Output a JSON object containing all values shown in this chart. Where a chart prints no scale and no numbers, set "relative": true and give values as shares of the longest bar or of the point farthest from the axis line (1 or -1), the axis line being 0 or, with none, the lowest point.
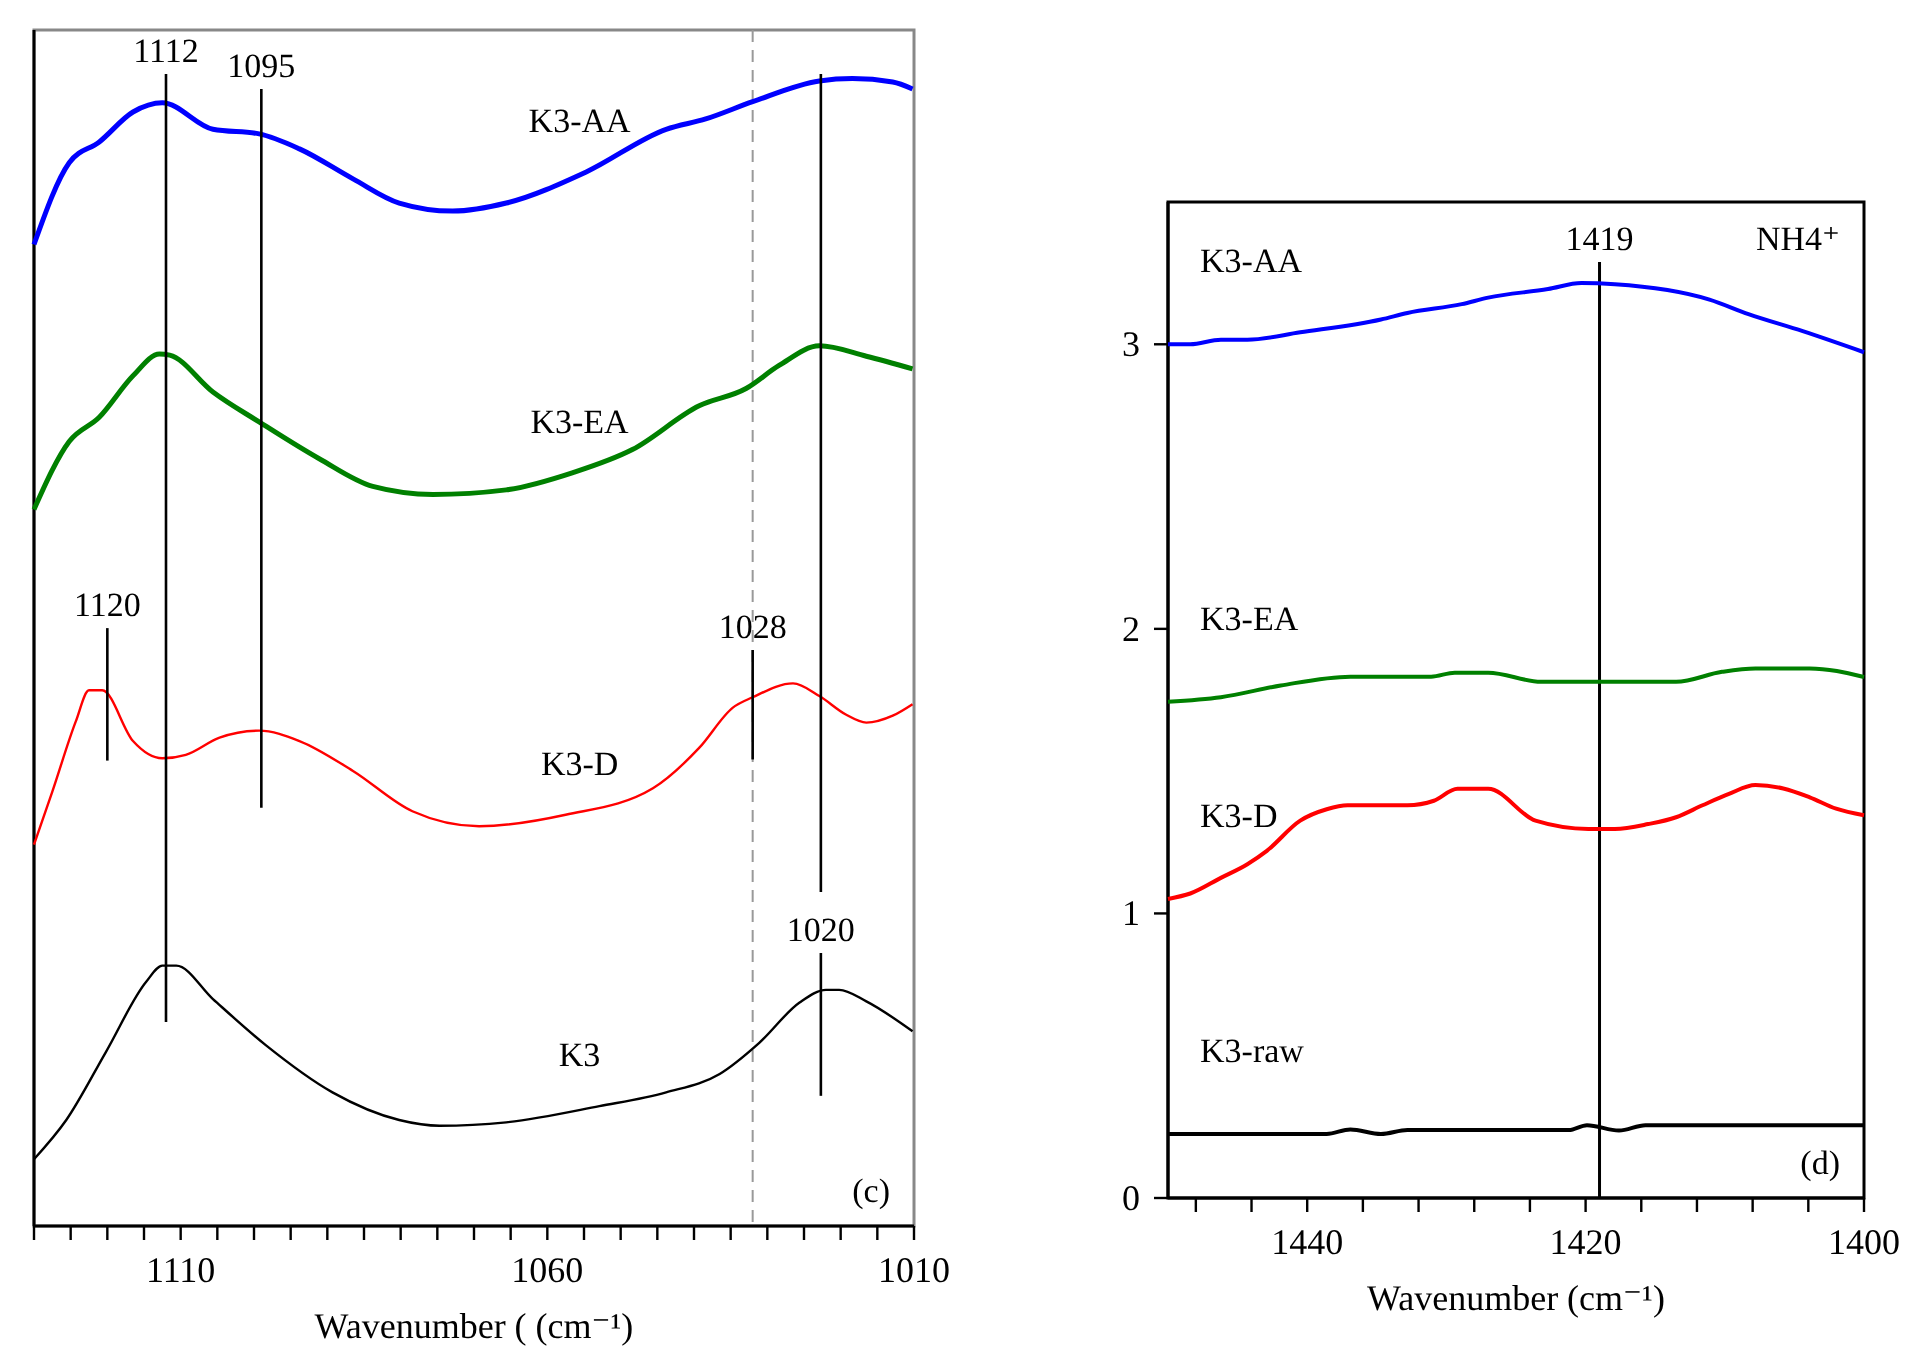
{
  "chart_data": [
    {
      "type": "line",
      "xlabel": "Wavenumber ( (cm⁻¹)",
      "relative": true,
      "xlim": [
        1130,
        1010
      ],
      "xticks": [
        {
          "value": 1130,
          "label": null
        },
        {
          "value": 1125,
          "label": null
        },
        {
          "value": 1120,
          "label": null
        },
        {
          "value": 1115,
          "label": null
        },
        1110,
        {
          "value": 1105,
          "label": null
        },
        {
          "value": 1100,
          "label": null
        },
        {
          "value": 1095,
          "label": null
        },
        {
          "value": 1090,
          "label": null
        },
        {
          "value": 1085,
          "label": null
        },
        {
          "value": 1080,
          "label": null
        },
        {
          "value": 1075,
          "label": null
        },
        {
          "value": 1070,
          "label": null
        },
        {
          "value": 1065,
          "label": null
        },
        1060,
        {
          "value": 1055,
          "label": null
        },
        {
          "value": 1050,
          "label": null
        },
        {
          "value": 1045,
          "label": null
        },
        {
          "value": 1040,
          "label": null
        },
        {
          "value": 1035,
          "label": null
        },
        {
          "value": 1030,
          "label": null
        },
        {
          "value": 1025,
          "label": null
        },
        {
          "value": 1020,
          "label": null
        },
        {
          "value": 1015,
          "label": null
        },
        1010
      ],
      "series": [
        {
          "name": "K3-AA",
          "color": "#0000ff",
          "x": [
            1130,
            1125.2,
            1121.1,
            1116.5,
            1112.5,
            1105.6,
            1099.3,
            1093.8,
            1086.5,
            1080.2,
            1072.9,
            1065.6,
            1054.7,
            1043.8,
            1038.4,
            1032,
            1022.9,
            1018.4,
            1012.9,
            1010.2
          ],
          "values": [
            0.852,
            0.923,
            0.941,
            0.967,
            0.975,
            0.952,
            0.948,
            0.935,
            0.909,
            0.888,
            0.881,
            0.888,
            0.915,
            0.952,
            0.961,
            0.976,
            0.994,
            0.996,
            0.993,
            0.987
          ]
        },
        {
          "name": "K3-EA",
          "color": "#008000",
          "x": [
            1130,
            1125.2,
            1121.1,
            1116.5,
            1112.9,
            1111.5,
            1105.6,
            1099.3,
            1091.1,
            1083.8,
            1075.6,
            1065.6,
            1056.5,
            1048.4,
            1039.3,
            1032.9,
            1028.4,
            1022.9,
            1016.5,
            1010.2
          ],
          "values": [
            0.622,
            0.681,
            0.702,
            0.738,
            0.757,
            0.756,
            0.724,
            0.698,
            0.666,
            0.642,
            0.635,
            0.639,
            0.654,
            0.674,
            0.712,
            0.727,
            0.747,
            0.764,
            0.755,
            0.744
          ]
        },
        {
          "name": "K3-D",
          "color": "#ff0000",
          "x": [
            1130,
            1127.5,
            1124.3,
            1122.5,
            1120.7,
            1116.5,
            1112.5,
            1109.3,
            1104.7,
            1099.3,
            1093.8,
            1086.5,
            1078.4,
            1069.3,
            1057.5,
            1045.6,
            1039.3,
            1034.7,
            1032,
            1026.5,
            1022.9,
            1019.3,
            1016.5,
            1012.9,
            1010.2
          ],
          "values": [
            0.331,
            0.377,
            0.438,
            0.465,
            0.465,
            0.421,
            0.406,
            0.409,
            0.424,
            0.43,
            0.421,
            0.395,
            0.36,
            0.347,
            0.357,
            0.38,
            0.415,
            0.45,
            0.459,
            0.471,
            0.46,
            0.444,
            0.437,
            0.443,
            0.453
          ]
        },
        {
          "name": "K3",
          "color": "#000000",
          "x": [
            1130,
            1125.6,
            1120.2,
            1114.7,
            1112.5,
            1110.6,
            1105.6,
            1098.4,
            1089.3,
            1080.2,
            1074.7,
            1065.6,
            1052.9,
            1043.8,
            1036.5,
            1031.1,
            1025.6,
            1022,
            1020.2,
            1016.5,
            1010.2
          ],
          "values": [
            0.058,
            0.092,
            0.151,
            0.212,
            0.226,
            0.226,
            0.197,
            0.157,
            0.116,
            0.092,
            0.087,
            0.09,
            0.104,
            0.116,
            0.132,
            0.159,
            0.194,
            0.205,
            0.205,
            0.195,
            0.169
          ]
        },
        {
          "type": "line",
          "color": "#000000",
          "x": [
            1112,
            1112
          ],
          "values": [
            1,
            0.177
          ]
        },
        {
          "type": "line",
          "color": "#000000",
          "x": [
            1099,
            1099
          ],
          "values": [
            0.987,
            0.363
          ]
        },
        {
          "type": "line",
          "color": "#000000",
          "x": [
            1120,
            1120
          ],
          "values": [
            0.519,
            0.404
          ]
        },
        {
          "type": "line",
          "color": "#000000",
          "x": [
            1032,
            1032
          ],
          "values": [
            0.5,
            0.405
          ]
        },
        {
          "type": "line",
          "color": "#000000",
          "x": [
            1022.7,
            1022.7
          ],
          "values": [
            1,
            0.29
          ]
        },
        {
          "type": "line",
          "color": "#000000",
          "x": [
            1022.7,
            1022.7
          ],
          "values": [
            0.237,
            0.113
          ]
        }
      ],
      "ref_lines": [
        {
          "axis": "x",
          "value": 1032,
          "color": "#999999",
          "line_style": "dashed"
        }
      ],
      "annotations": [
        {
          "text": "1112",
          "x": 1112,
          "y": 1
        },
        {
          "text": "1095",
          "x": 1099,
          "y": 0.987
        },
        {
          "text": "1120",
          "x": 1120,
          "y": 0.519
        },
        {
          "text": "1028",
          "x": 1032,
          "y": 0.5
        },
        {
          "text": "1020",
          "x": 1022.7,
          "y": 0.237
        },
        "(c)"
      ]
    },
    {
      "type": "line",
      "xlabel": "Wavenumber (cm⁻¹)",
      "xlim": [
        1450,
        1400
      ],
      "ylim": [
        0,
        3.5
      ],
      "yticks": [
        0,
        1,
        2,
        3
      ],
      "xticks": [
        {
          "value": 1448,
          "label": null
        },
        {
          "value": 1444,
          "label": null
        },
        1440,
        {
          "value": 1436,
          "label": null
        },
        {
          "value": 1432,
          "label": null
        },
        {
          "value": 1428,
          "label": null
        },
        {
          "value": 1424,
          "label": null
        },
        1420,
        {
          "value": 1416,
          "label": null
        },
        {
          "value": 1412,
          "label": null
        },
        {
          "value": 1408,
          "label": null
        },
        {
          "value": 1404,
          "label": null
        },
        1400
      ],
      "series": [
        {
          "name": "K3-AA",
          "color": "#0000ff",
          "x": [
            1450,
            1448.4,
            1446.2,
            1444.3,
            1440.5,
            1434.7,
            1432.8,
            1428.9,
            1427,
            1422.7,
            1420.3,
            1417.9,
            1411.1,
            1408.3,
            1404.4,
            1400
          ],
          "values": [
            3.0,
            3.0,
            3.016,
            3.016,
            3.042,
            3.087,
            3.11,
            3.141,
            3.164,
            3.194,
            3.215,
            3.211,
            3.157,
            3.106,
            3.046,
            2.972
          ]
        },
        {
          "name": "K3-EA",
          "color": "#008000",
          "x": [
            1450,
            1446.2,
            1441.9,
            1436.9,
            1431.1,
            1429.4,
            1427,
            1423.2,
            1413.5,
            1410.2,
            1407.8,
            1403.9,
            1400
          ],
          "values": [
            1.744,
            1.76,
            1.801,
            1.832,
            1.832,
            1.846,
            1.846,
            1.814,
            1.814,
            1.849,
            1.861,
            1.861,
            1.831
          ]
        },
        {
          "name": "K3-D",
          "color": "#ff0000",
          "x": [
            1450,
            1448.4,
            1446.2,
            1444.3,
            1442.9,
            1440.5,
            1438.6,
            1437.1,
            1432.8,
            1430.9,
            1429.2,
            1427,
            1423.6,
            1419.8,
            1417.9,
            1415.5,
            1413.5,
            1411.6,
            1409.7,
            1407.8,
            1405.8,
            1403.9,
            1402,
            1400
          ],
          "values": [
            1.051,
            1.07,
            1.125,
            1.173,
            1.22,
            1.326,
            1.366,
            1.38,
            1.38,
            1.396,
            1.438,
            1.438,
            1.326,
            1.297,
            1.297,
            1.314,
            1.338,
            1.38,
            1.42,
            1.451,
            1.439,
            1.408,
            1.368,
            1.345
          ]
        },
        {
          "name": "K3-raw",
          "color": "#000000",
          "x": [
            1450,
            1438.6,
            1436.9,
            1434.7,
            1432.8,
            1421.2,
            1419.9,
            1417.6,
            1415.7,
            1400
          ],
          "values": [
            0.225,
            0.225,
            0.241,
            0.225,
            0.239,
            0.239,
            0.256,
            0.237,
            0.256,
            0.256
          ]
        }
      ],
      "ref_lines": [
        {
          "axis": "x",
          "value": 1419,
          "label": "1419",
          "color": "#000000"
        }
      ],
      "annotations": [
        "NH4⁺",
        "(d)"
      ]
    }
  ]
}
